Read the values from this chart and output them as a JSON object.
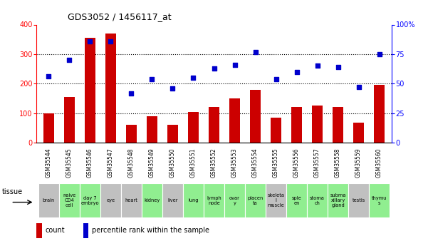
{
  "title": "GDS3052 / 1456117_at",
  "gsm_labels": [
    "GSM35544",
    "GSM35545",
    "GSM35546",
    "GSM35547",
    "GSM35548",
    "GSM35549",
    "GSM35550",
    "GSM35551",
    "GSM35552",
    "GSM35553",
    "GSM35554",
    "GSM35555",
    "GSM35556",
    "GSM35557",
    "GSM35558",
    "GSM35559",
    "GSM35560"
  ],
  "counts": [
    100,
    155,
    355,
    370,
    60,
    90,
    60,
    105,
    120,
    150,
    180,
    85,
    120,
    125,
    120,
    68,
    195
  ],
  "percentiles": [
    56,
    70,
    86,
    86,
    42,
    54,
    46,
    55,
    63,
    66,
    77,
    54,
    60,
    65,
    64,
    47,
    75
  ],
  "tissue_labels": [
    "brain",
    "naive\nCD4\ncell",
    "day 7\nembryо",
    "eye",
    "heart",
    "kidney",
    "liver",
    "lung",
    "lymph\nnode",
    "ovar\ny",
    "placen\nta",
    "skeleta\nl\nmuscle",
    "sple\nen",
    "stoma\nch",
    "subma\nxillary\ngland",
    "testis",
    "thymu\ns"
  ],
  "tissue_colors": [
    "#c0c0c0",
    "#90EE90",
    "#90EE90",
    "#c0c0c0",
    "#c0c0c0",
    "#90EE90",
    "#c0c0c0",
    "#90EE90",
    "#90EE90",
    "#90EE90",
    "#90EE90",
    "#c0c0c0",
    "#90EE90",
    "#90EE90",
    "#90EE90",
    "#c0c0c0",
    "#90EE90"
  ],
  "bar_color": "#CC0000",
  "dot_color": "#0000CC",
  "ylim_left": [
    0,
    400
  ],
  "ylim_right": [
    0,
    100
  ],
  "yticks_left": [
    0,
    100,
    200,
    300,
    400
  ],
  "yticks_right": [
    0,
    25,
    50,
    75,
    100
  ],
  "yticklabels_right": [
    "0",
    "25",
    "50",
    "75",
    "100%"
  ],
  "bg_color": "#ffffff",
  "bar_width": 0.55,
  "gsm_row_color": "#c8c8c8"
}
